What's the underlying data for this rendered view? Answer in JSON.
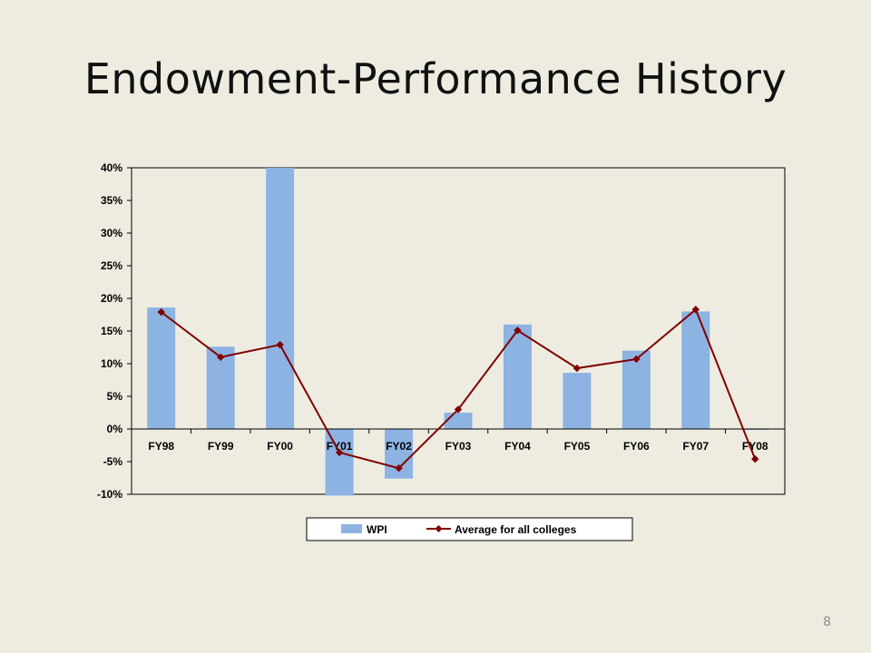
{
  "slide": {
    "title": "Endowment-Performance History",
    "page_number": "8"
  },
  "chart_data": {
    "type": "bar",
    "title": "",
    "xlabel": "",
    "ylabel": "",
    "categories": [
      "FY98",
      "FY99",
      "FY00",
      "FY01",
      "FY02",
      "FY03",
      "FY04",
      "FY05",
      "FY06",
      "FY07",
      "FY08"
    ],
    "series": [
      {
        "name": "WPI",
        "type": "bar",
        "color": "#8db3e2",
        "values": [
          18.6,
          12.6,
          40.0,
          -10.2,
          -7.6,
          2.5,
          16.0,
          8.6,
          12.0,
          18.0,
          -0.1
        ]
      },
      {
        "name": "Average for all colleges",
        "type": "line",
        "marker": "diamond",
        "color": "#800000",
        "values": [
          17.9,
          11.0,
          12.9,
          -3.6,
          -6.0,
          3.0,
          15.1,
          9.3,
          10.7,
          18.3,
          -4.6
        ]
      }
    ],
    "ylim": [
      -10,
      40
    ],
    "yticks": [
      "-10%",
      "-5%",
      "0%",
      "5%",
      "10%",
      "15%",
      "20%",
      "25%",
      "30%",
      "35%",
      "40%"
    ],
    "y_tick_values": [
      -10,
      -5,
      0,
      5,
      10,
      15,
      20,
      25,
      30,
      35,
      40
    ],
    "grid": false,
    "legend_position": "bottom"
  }
}
